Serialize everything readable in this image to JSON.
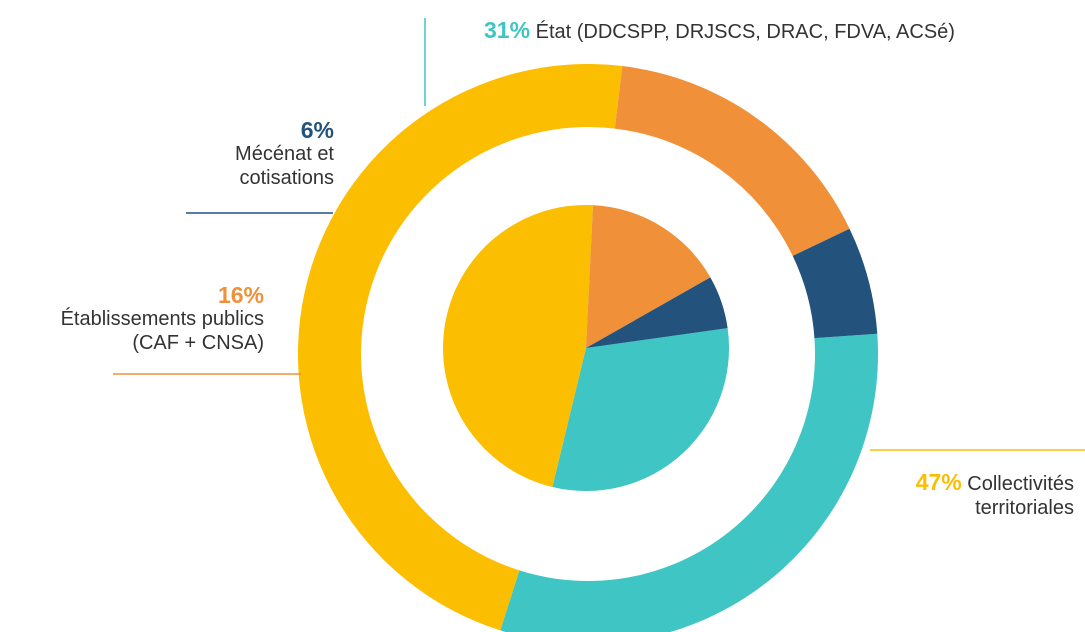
{
  "chart_data": {
    "type": "pie",
    "style": "donut with inner pie",
    "title": "",
    "slices": [
      {
        "percent_label": "31%",
        "value": 31,
        "name": "État (DDCSPP, DRJSCS, DRAC, FDVA, ACSé)",
        "name_line1": "État (DDCSPP, DRJSCS, DRAC, FDVA, ACSé)",
        "name_line2": "",
        "color": "#3fc5c4"
      },
      {
        "percent_label": "47%",
        "value": 47,
        "name": "Collectivités territoriales",
        "name_line1": "Collectivités",
        "name_line2": "territoriales",
        "color": "#fbbe00"
      },
      {
        "percent_label": "16%",
        "value": 16,
        "name": "Établissements publics (CAF + CNSA)",
        "name_line1": "Établissements publics",
        "name_line2": "(CAF + CNSA)",
        "color": "#f0913a"
      },
      {
        "percent_label": "6%",
        "value": 6,
        "name": "Mécénat et cotisations",
        "name_line1": "Mécénat et",
        "name_line2": "cotisations",
        "color": "#23527c"
      }
    ]
  }
}
